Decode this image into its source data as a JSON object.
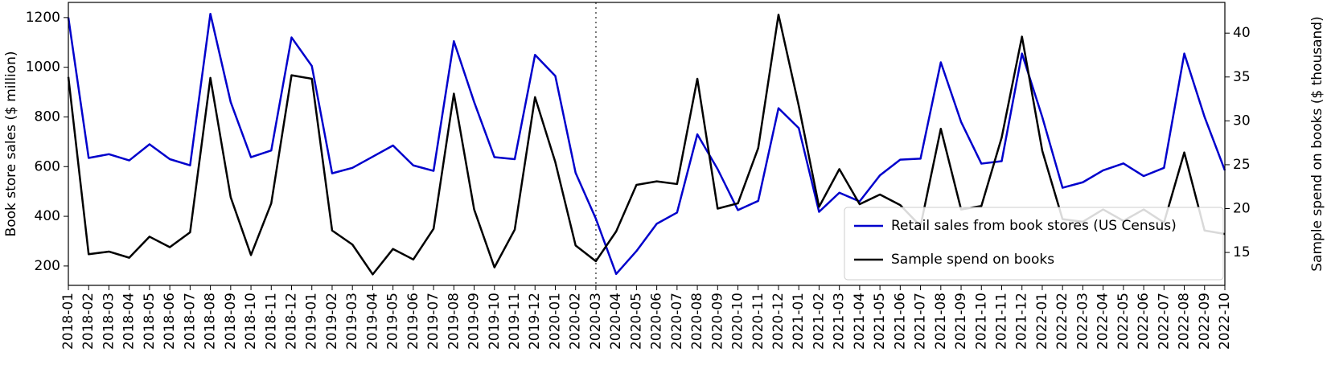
{
  "chart_data": {
    "type": "line",
    "y_label": "Book store sales ($ million)",
    "y2_label": "Sample spend on books ($ thousand)",
    "categories": [
      "2018-01",
      "2018-02",
      "2018-03",
      "2018-04",
      "2018-05",
      "2018-06",
      "2018-07",
      "2018-08",
      "2018-09",
      "2018-10",
      "2018-11",
      "2018-12",
      "2019-01",
      "2019-02",
      "2019-03",
      "2019-04",
      "2019-05",
      "2019-06",
      "2019-07",
      "2019-08",
      "2019-09",
      "2019-10",
      "2019-11",
      "2019-12",
      "2020-01",
      "2020-02",
      "2020-03",
      "2020-04",
      "2020-05",
      "2020-06",
      "2020-07",
      "2020-08",
      "2020-09",
      "2020-10",
      "2020-11",
      "2020-12",
      "2021-01",
      "2021-02",
      "2021-03",
      "2021-04",
      "2021-05",
      "2021-06",
      "2021-07",
      "2021-08",
      "2021-09",
      "2021-10",
      "2021-11",
      "2021-12",
      "2022-01",
      "2022-02",
      "2022-03",
      "2022-04",
      "2022-05",
      "2022-06",
      "2022-07",
      "2022-08",
      "2022-09",
      "2022-10"
    ],
    "series": [
      {
        "name": "Retail sales from book stores (US Census)",
        "color": "#0000cc",
        "values": [
          1200,
          635,
          650,
          625,
          690,
          630,
          605,
          1215,
          860,
          638,
          665,
          1120,
          1005,
          573,
          595,
          640,
          685,
          605,
          583,
          1105,
          860,
          638,
          630,
          1050,
          965,
          575,
          390,
          168,
          260,
          370,
          415,
          730,
          590,
          425,
          462,
          835,
          755,
          418,
          495,
          460,
          565,
          628,
          632,
          1020,
          780,
          612,
          622,
          1055,
          800,
          515,
          537,
          585,
          613,
          562,
          595,
          1055,
          800,
          585
        ]
      },
      {
        "name": "Sample spend on books",
        "color": "#000000",
        "axis": "y2",
        "values": [
          35,
          14.8,
          15.1,
          14.4,
          16.8,
          15.6,
          17.3,
          34.9,
          21.3,
          14.7,
          20.6,
          35.2,
          34.8,
          17.5,
          15.9,
          12.5,
          15.4,
          14.2,
          17.7,
          33.1,
          19.9,
          13.3,
          17.6,
          32.7,
          25.3,
          15.8,
          14.0,
          17.4,
          22.7,
          23.1,
          22.8,
          34.8,
          20.0,
          20.6,
          26.9,
          42.1,
          31.7,
          20.2,
          24.5,
          20.5,
          21.6,
          20.4,
          18.0,
          29.1,
          19.9,
          20.3,
          28.1,
          39.6,
          26.6,
          18.8,
          18.5,
          19.9,
          18.6,
          19.9,
          18.4,
          26.4,
          17.5,
          17.1
        ]
      }
    ],
    "ylim": [
      122,
      1261
    ],
    "yticks": [
      200,
      400,
      600,
      800,
      1000,
      1200
    ],
    "y2lim": [
      11.25,
      43.5
    ],
    "y2ticks": [
      15,
      20,
      25,
      30,
      35,
      40
    ],
    "vline": "2020-03",
    "legend": "lower right",
    "grid": false
  }
}
